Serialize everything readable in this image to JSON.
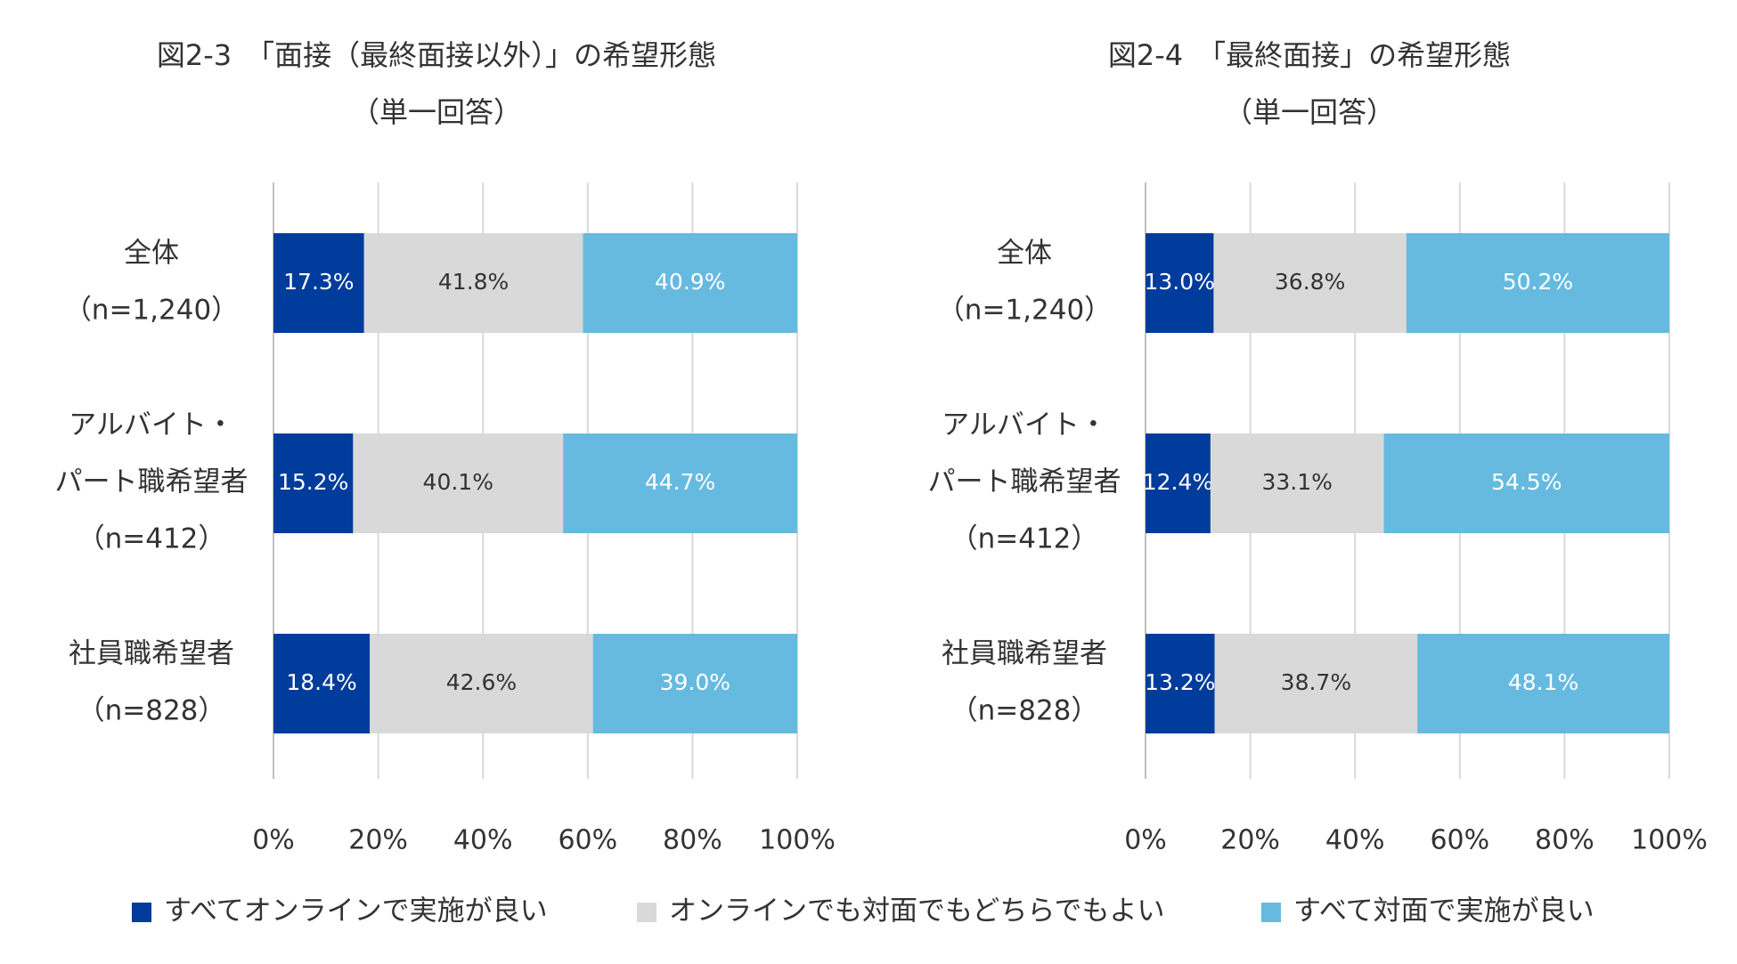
{
  "legend": [
    {
      "label": "すべてオンラインで実施が良い",
      "color": "#003c9b"
    },
    {
      "label": "オンラインでも対面でもどちらでもよい",
      "color": "#d9d9d9"
    },
    {
      "label": "すべて対面で実施が良い",
      "color": "#66bae0"
    }
  ],
  "chart_data": [
    {
      "type": "bar",
      "orientation": "horizontal",
      "stacked": true,
      "title": "図2-3　「面接（最終面接以外）」の希望形態",
      "subtitle": "（単一回答）",
      "categories": [
        [
          "全体",
          "（n=1,240）"
        ],
        [
          "アルバイト・",
          "パート職希望者",
          "（n=412）"
        ],
        [
          "社員職希望者",
          "（n=828）"
        ]
      ],
      "series": [
        {
          "name": "すべてオンラインで実施が良い",
          "values": [
            17.3,
            15.2,
            18.4
          ],
          "labels": [
            "17.3%",
            "15.2%",
            "18.4%"
          ]
        },
        {
          "name": "オンラインでも対面でもどちらでもよい",
          "values": [
            41.8,
            40.1,
            42.6
          ],
          "labels": [
            "41.8%",
            "40.1%",
            "42.6%"
          ]
        },
        {
          "name": "すべて対面で実施が良い",
          "values": [
            40.9,
            44.7,
            39.0
          ],
          "labels": [
            "40.9%",
            "44.7%",
            "39.0%"
          ]
        }
      ],
      "xlim": [
        0,
        100
      ],
      "xticks": [
        "0%",
        "20%",
        "40%",
        "60%",
        "80%",
        "100%"
      ],
      "grid": true
    },
    {
      "type": "bar",
      "orientation": "horizontal",
      "stacked": true,
      "title": "図2-4　「最終面接」の希望形態",
      "subtitle": "（単一回答）",
      "categories": [
        [
          "全体",
          "（n=1,240）"
        ],
        [
          "アルバイト・",
          "パート職希望者",
          "（n=412）"
        ],
        [
          "社員職希望者",
          "（n=828）"
        ]
      ],
      "series": [
        {
          "name": "すべてオンラインで実施が良い",
          "values": [
            13.0,
            12.4,
            13.2
          ],
          "labels": [
            "13.0%",
            "12.4%",
            "13.2%"
          ]
        },
        {
          "name": "オンラインでも対面でもどちらでもよい",
          "values": [
            36.8,
            33.1,
            38.7
          ],
          "labels": [
            "36.8%",
            "33.1%",
            "38.7%"
          ]
        },
        {
          "name": "すべて対面で実施が良い",
          "values": [
            50.2,
            54.5,
            48.1
          ],
          "labels": [
            "50.2%",
            "54.5%",
            "48.1%"
          ]
        }
      ],
      "xlim": [
        0,
        100
      ],
      "xticks": [
        "0%",
        "20%",
        "40%",
        "60%",
        "80%",
        "100%"
      ],
      "grid": true
    }
  ]
}
